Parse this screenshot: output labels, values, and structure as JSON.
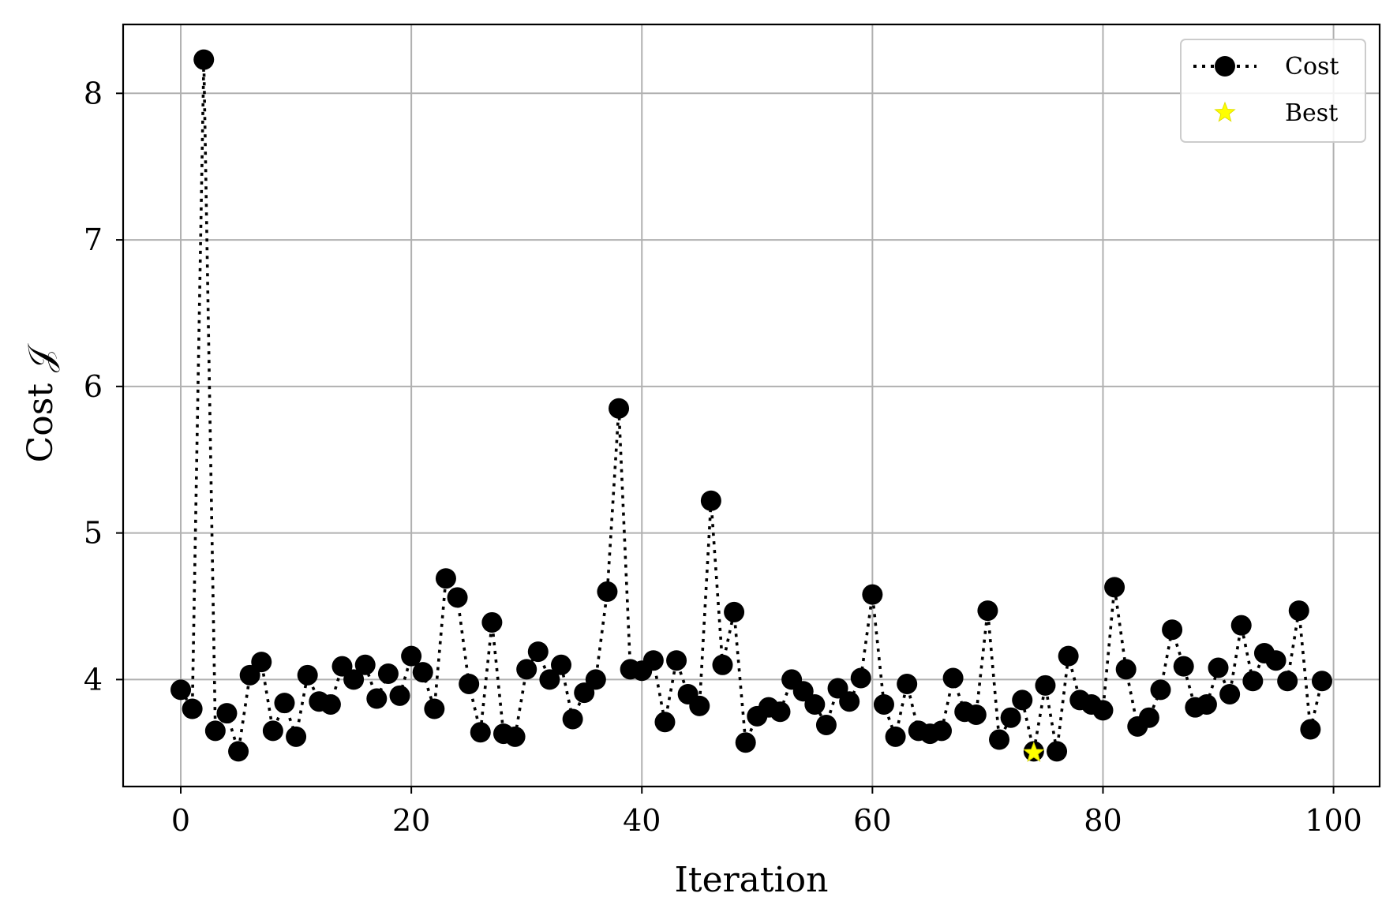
{
  "chart_data": {
    "type": "line",
    "xlabel": "Iteration",
    "ylabel": "Cost 𝒥",
    "xlim": [
      -5,
      104
    ],
    "ylim": [
      3.27,
      8.47
    ],
    "xticks": [
      0,
      20,
      40,
      60,
      80,
      100
    ],
    "yticks": [
      4,
      5,
      6,
      7,
      8
    ],
    "grid": true,
    "legend_position": "top-right",
    "colors": {
      "cost": "#000000",
      "best": "#ffff00"
    },
    "series": [
      {
        "name": "Cost",
        "style": "dotted line with circle markers",
        "x": [
          0,
          1,
          2,
          3,
          4,
          5,
          6,
          7,
          8,
          9,
          10,
          11,
          12,
          13,
          14,
          15,
          16,
          17,
          18,
          19,
          20,
          21,
          22,
          23,
          24,
          25,
          26,
          27,
          28,
          29,
          30,
          31,
          32,
          33,
          34,
          35,
          36,
          37,
          38,
          39,
          40,
          41,
          42,
          43,
          44,
          45,
          46,
          47,
          48,
          49,
          50,
          51,
          52,
          53,
          54,
          55,
          56,
          57,
          58,
          59,
          60,
          61,
          62,
          63,
          64,
          65,
          66,
          67,
          68,
          69,
          70,
          71,
          72,
          73,
          74,
          75,
          76,
          77,
          78,
          79,
          80,
          81,
          82,
          83,
          84,
          85,
          86,
          87,
          88,
          89,
          90,
          91,
          92,
          93,
          94,
          95,
          96,
          97,
          98,
          99
        ],
        "y": [
          3.93,
          3.8,
          8.23,
          3.65,
          3.77,
          3.51,
          4.03,
          4.12,
          3.65,
          3.84,
          3.61,
          4.03,
          3.85,
          3.83,
          4.09,
          4.0,
          4.1,
          3.87,
          4.04,
          3.89,
          4.16,
          4.05,
          3.8,
          4.69,
          4.56,
          3.97,
          3.64,
          4.39,
          3.63,
          3.61,
          4.07,
          4.19,
          4.0,
          4.1,
          3.73,
          3.91,
          4.0,
          4.6,
          5.85,
          4.07,
          4.06,
          4.13,
          3.71,
          4.13,
          3.9,
          3.82,
          5.22,
          4.1,
          4.46,
          3.57,
          3.75,
          3.81,
          3.78,
          4.0,
          3.92,
          3.83,
          3.69,
          3.94,
          3.85,
          4.01,
          4.58,
          3.83,
          3.61,
          3.97,
          3.65,
          3.63,
          3.65,
          4.01,
          3.78,
          3.76,
          4.47,
          3.59,
          3.74,
          3.86,
          3.51,
          3.96,
          3.51,
          4.16,
          3.86,
          3.83,
          3.79,
          4.63,
          4.07,
          3.68,
          3.74,
          3.93,
          4.34,
          4.09,
          3.81,
          3.83,
          4.08,
          3.9,
          4.37,
          3.99,
          4.18,
          4.13,
          3.99,
          4.47,
          3.66,
          3.99
        ]
      },
      {
        "name": "Best",
        "style": "yellow star marker",
        "x": [
          74
        ],
        "y": [
          3.5
        ]
      }
    ]
  }
}
